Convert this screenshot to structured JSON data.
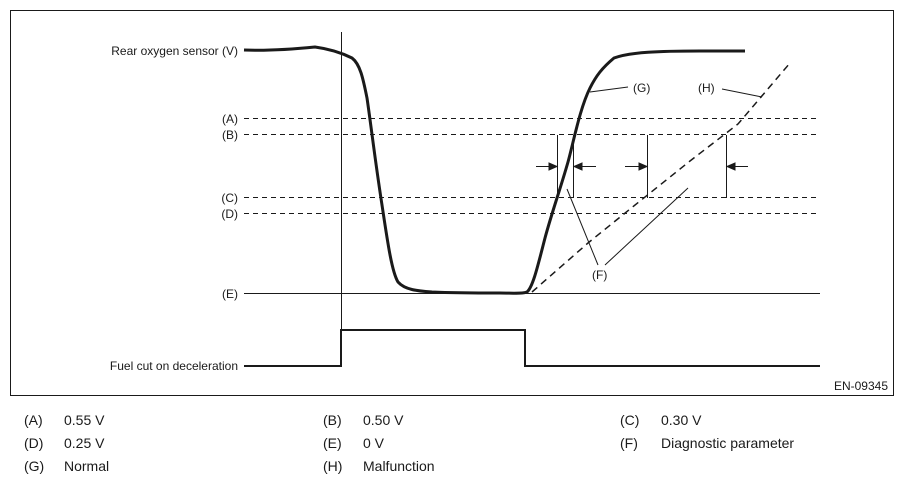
{
  "figure_id": "EN-09345",
  "axes": {
    "sensor_label": "Rear oxygen sensor (V)",
    "fuel_cut_label": "Fuel cut on deceleration"
  },
  "levels": [
    {
      "key": "(A)",
      "style": "dashed"
    },
    {
      "key": "(B)",
      "style": "dashed"
    },
    {
      "key": "(C)",
      "style": "dashed"
    },
    {
      "key": "(D)",
      "style": "dashed"
    },
    {
      "key": "(E)",
      "style": "solid"
    }
  ],
  "callouts": {
    "normal": "(G)",
    "malfunction": "(H)",
    "diagnostic": "(F)"
  },
  "legend": [
    {
      "key": "(A)",
      "value": "0.55 V"
    },
    {
      "key": "(B)",
      "value": "0.50 V"
    },
    {
      "key": "(C)",
      "value": "0.30 V"
    },
    {
      "key": "(D)",
      "value": "0.25 V"
    },
    {
      "key": "(E)",
      "value": "0 V"
    },
    {
      "key": "(F)",
      "value": "Diagnostic parameter"
    },
    {
      "key": "(G)",
      "value": "Normal"
    },
    {
      "key": "(H)",
      "value": "Malfunction"
    }
  ],
  "colors": {
    "line": "#1a1a1a",
    "background": "#ffffff"
  }
}
